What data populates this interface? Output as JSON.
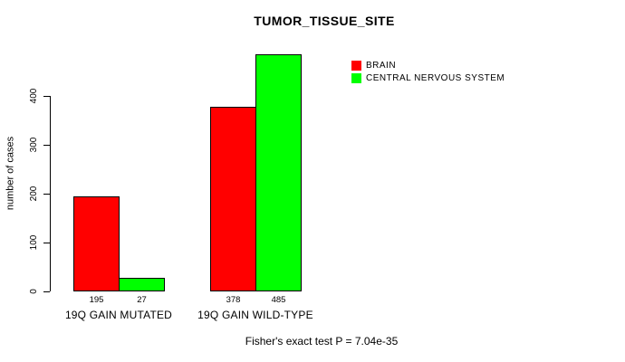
{
  "window": {
    "background": "#ffffff",
    "text_color": "#000000"
  },
  "chart_data": {
    "type": "bar",
    "title": "TUMOR_TISSUE_SITE",
    "ylabel": "number of cases",
    "xlabel": "",
    "categories": [
      "19Q GAIN MUTATED",
      "19Q GAIN WILD-TYPE"
    ],
    "series": [
      {
        "name": "BRAIN",
        "color": "#ff0000",
        "values": [
          195,
          378
        ]
      },
      {
        "name": "CENTRAL NERVOUS SYSTEM",
        "color": "#00ff00",
        "values": [
          27,
          485
        ]
      }
    ],
    "bar_value_labels": [
      [
        195,
        27
      ],
      [
        378,
        485
      ]
    ],
    "yticks": [
      0,
      100,
      200,
      300,
      400
    ],
    "ylim": [
      0,
      485
    ],
    "grid": false,
    "legend_position": "topright",
    "bar_border_color": "#000000",
    "annotation": "Fisher's exact test P = 7.04e-35"
  }
}
